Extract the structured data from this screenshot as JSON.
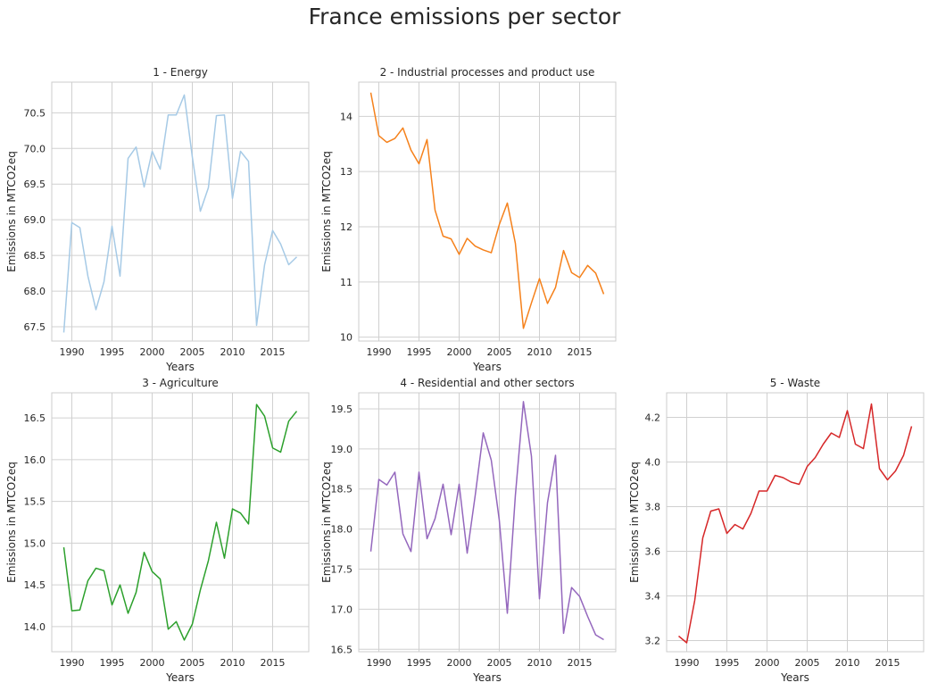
{
  "figure": {
    "title": "France emissions per sector"
  },
  "chart_data": [
    {
      "type": "line",
      "title": "1 - Energy",
      "xlabel": "Years",
      "ylabel": "Emissions in MTCO2eq",
      "color": "#a6cae6",
      "xlim": [
        1987.5,
        1990.5
      ],
      "ylim": [
        67.3,
        70.93
      ],
      "xticks": [
        1990,
        1995,
        2000,
        2005,
        2010,
        2015
      ],
      "yticks": [
        67.5,
        68.0,
        68.5,
        69.0,
        69.5,
        70.0,
        70.5
      ],
      "ytick_decimals": 1,
      "x": [
        1989,
        1990,
        1991,
        1992,
        1993,
        1994,
        1995,
        1996,
        1997,
        1998,
        1999,
        2000,
        2001,
        2002,
        2003,
        2004,
        2005,
        2006,
        2007,
        2008,
        2009,
        2010,
        2011,
        2012,
        2013,
        2014,
        2015,
        2016,
        2017,
        2018
      ],
      "values": [
        67.42,
        68.96,
        68.89,
        68.21,
        67.74,
        68.13,
        68.91,
        68.21,
        69.86,
        70.02,
        69.46,
        69.96,
        69.71,
        70.47,
        70.47,
        70.75,
        69.88,
        69.12,
        69.45,
        70.46,
        70.47,
        69.3,
        69.96,
        69.82,
        67.52,
        68.37,
        68.85,
        68.66,
        68.37,
        68.48
      ]
    },
    {
      "type": "line",
      "title": "2 - Industrial processes and product use",
      "xlabel": "Years",
      "ylabel": "Emissions in MTCO2eq",
      "color": "#f5811b",
      "ylim": [
        9.93,
        14.62
      ],
      "xticks": [
        1990,
        1995,
        2000,
        2005,
        2010,
        2015
      ],
      "yticks": [
        10,
        11,
        12,
        13,
        14
      ],
      "ytick_decimals": 0,
      "x": [
        1989,
        1990,
        1991,
        1992,
        1993,
        1994,
        1995,
        1996,
        1997,
        1998,
        1999,
        2000,
        2001,
        2002,
        2003,
        2004,
        2005,
        2006,
        2007,
        2008,
        2009,
        2010,
        2011,
        2012,
        2013,
        2014,
        2015,
        2016,
        2017,
        2018
      ],
      "values": [
        14.43,
        13.65,
        13.53,
        13.6,
        13.79,
        13.39,
        13.14,
        13.58,
        12.3,
        11.83,
        11.78,
        11.5,
        11.79,
        11.65,
        11.58,
        11.53,
        12.04,
        12.43,
        11.7,
        10.16,
        10.62,
        11.06,
        10.61,
        10.9,
        11.57,
        11.17,
        11.08,
        11.3,
        11.16,
        10.78
      ]
    },
    {
      "type": "line",
      "title": "3 - Agriculture",
      "xlabel": "Years",
      "ylabel": "Emissions in MTCO2eq",
      "color": "#2ca02c",
      "ylim": [
        13.7,
        16.8
      ],
      "xticks": [
        1990,
        1995,
        2000,
        2005,
        2010,
        2015
      ],
      "yticks": [
        14.0,
        14.5,
        15.0,
        15.5,
        16.0,
        16.5
      ],
      "ytick_decimals": 1,
      "x": [
        1989,
        1990,
        1991,
        1992,
        1993,
        1994,
        1995,
        1996,
        1997,
        1998,
        1999,
        2000,
        2001,
        2002,
        2003,
        2004,
        2005,
        2006,
        2007,
        2008,
        2009,
        2010,
        2011,
        2012,
        2013,
        2014,
        2015,
        2016,
        2017,
        2018
      ],
      "values": [
        14.95,
        14.19,
        14.2,
        14.55,
        14.7,
        14.67,
        14.26,
        14.5,
        14.16,
        14.41,
        14.89,
        14.66,
        14.57,
        13.97,
        14.06,
        13.84,
        14.03,
        14.44,
        14.79,
        15.25,
        14.82,
        15.41,
        15.36,
        15.23,
        16.66,
        16.52,
        16.14,
        16.09,
        16.46,
        16.58
      ]
    },
    {
      "type": "line",
      "title": "4 - Residential and other sectors",
      "xlabel": "Years",
      "ylabel": "Emissions in MTCO2eq",
      "color": "#9467bd",
      "ylim": [
        16.47,
        19.7
      ],
      "xticks": [
        1990,
        1995,
        2000,
        2005,
        2010,
        2015
      ],
      "yticks": [
        16.5,
        17.0,
        17.5,
        18.0,
        18.5,
        19.0,
        19.5
      ],
      "ytick_decimals": 1,
      "x": [
        1989,
        1990,
        1991,
        1992,
        1993,
        1994,
        1995,
        1996,
        1997,
        1998,
        1999,
        2000,
        2001,
        2002,
        2003,
        2004,
        2005,
        2006,
        2007,
        2008,
        2009,
        2010,
        2011,
        2012,
        2013,
        2014,
        2015,
        2016,
        2017,
        2018
      ],
      "values": [
        17.72,
        18.62,
        18.55,
        18.71,
        17.94,
        17.72,
        18.71,
        17.88,
        18.13,
        18.56,
        17.93,
        18.56,
        17.7,
        18.42,
        19.2,
        18.86,
        18.11,
        16.95,
        18.42,
        19.59,
        18.91,
        17.13,
        18.33,
        18.92,
        16.7,
        17.27,
        17.16,
        16.91,
        16.68,
        16.62
      ]
    },
    {
      "type": "line",
      "title": "5 - Waste",
      "xlabel": "Years",
      "ylabel": "Emissions in MTCO2eq",
      "color": "#d62728",
      "ylim": [
        3.15,
        4.31
      ],
      "xticks": [
        1990,
        1995,
        2000,
        2005,
        2010,
        2015
      ],
      "yticks": [
        3.2,
        3.4,
        3.6,
        3.8,
        4.0,
        4.2
      ],
      "ytick_decimals": 1,
      "x": [
        1989,
        1990,
        1991,
        1992,
        1993,
        1994,
        1995,
        1996,
        1997,
        1998,
        1999,
        2000,
        2001,
        2002,
        2003,
        2004,
        2005,
        2006,
        2007,
        2008,
        2009,
        2010,
        2011,
        2012,
        2013,
        2014,
        2015,
        2016,
        2017,
        2018
      ],
      "values": [
        3.22,
        3.19,
        3.38,
        3.66,
        3.78,
        3.79,
        3.68,
        3.72,
        3.7,
        3.77,
        3.87,
        3.87,
        3.94,
        3.93,
        3.91,
        3.9,
        3.98,
        4.02,
        4.08,
        4.13,
        4.11,
        4.23,
        4.08,
        4.06,
        4.26,
        3.97,
        3.92,
        3.96,
        4.03,
        4.16
      ]
    }
  ]
}
